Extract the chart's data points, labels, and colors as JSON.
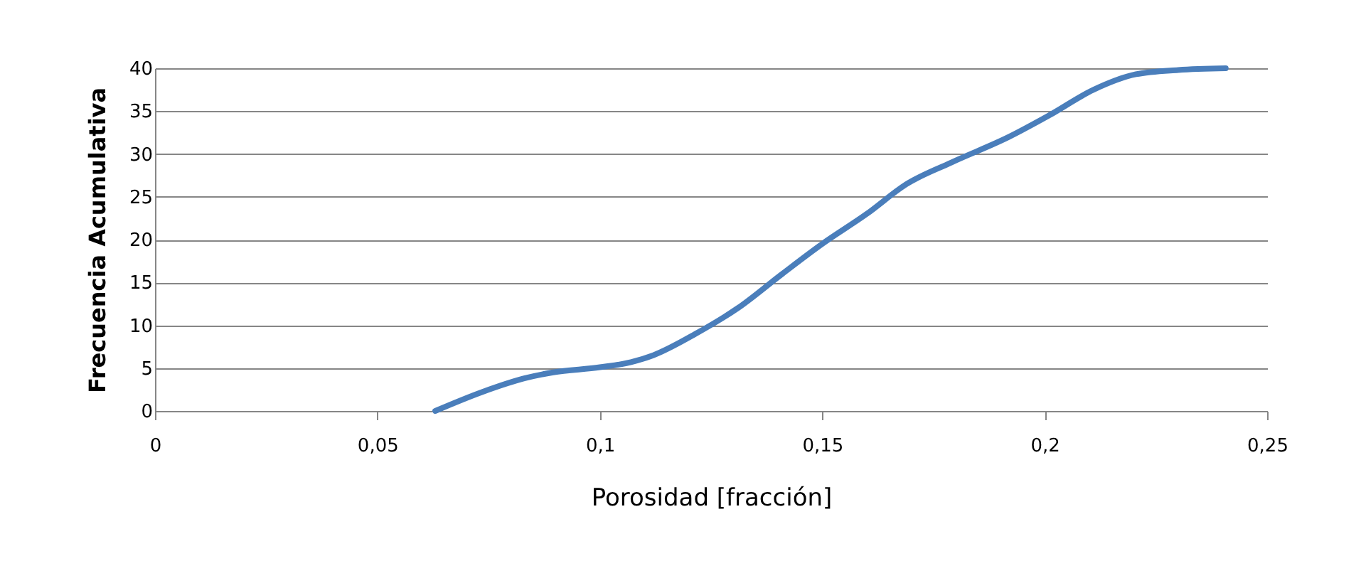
{
  "chart_data": {
    "type": "line",
    "xlabel": "Porosidad [fracción]",
    "ylabel": "Frecuencia Acumulativa",
    "x": [
      0.063,
      0.0735,
      0.083,
      0.0895,
      0.1,
      0.107,
      0.112,
      0.1215,
      0.131,
      0.141,
      0.15,
      0.16,
      0.169,
      0.179,
      0.192,
      0.201,
      0.211,
      0.2205,
      0.23,
      0.2407
    ],
    "series": [
      {
        "color": "#4a7ebb",
        "values": [
          0,
          2.2,
          3.8,
          4.5,
          5.1,
          5.7,
          6.5,
          9,
          12,
          16,
          19.5,
          23,
          26.5,
          29,
          32,
          34.5,
          37.5,
          39.3,
          39.8,
          40
        ]
      }
    ],
    "xlim": [
      0,
      0.25
    ],
    "xticks": [
      {
        "value": 0,
        "label": "0"
      },
      {
        "value": 0.05,
        "label": "0,05"
      },
      {
        "value": 0.1,
        "label": "0,1"
      },
      {
        "value": 0.15,
        "label": "0,15"
      },
      {
        "value": 0.2,
        "label": "0,2"
      },
      {
        "value": 0.25,
        "label": "0,25"
      }
    ],
    "ylim": [
      0,
      40
    ],
    "yticks": [
      0,
      5,
      10,
      15,
      20,
      25,
      30,
      35,
      40
    ],
    "grid": "y",
    "marker": "none",
    "line_style": "solid",
    "legend": false
  }
}
